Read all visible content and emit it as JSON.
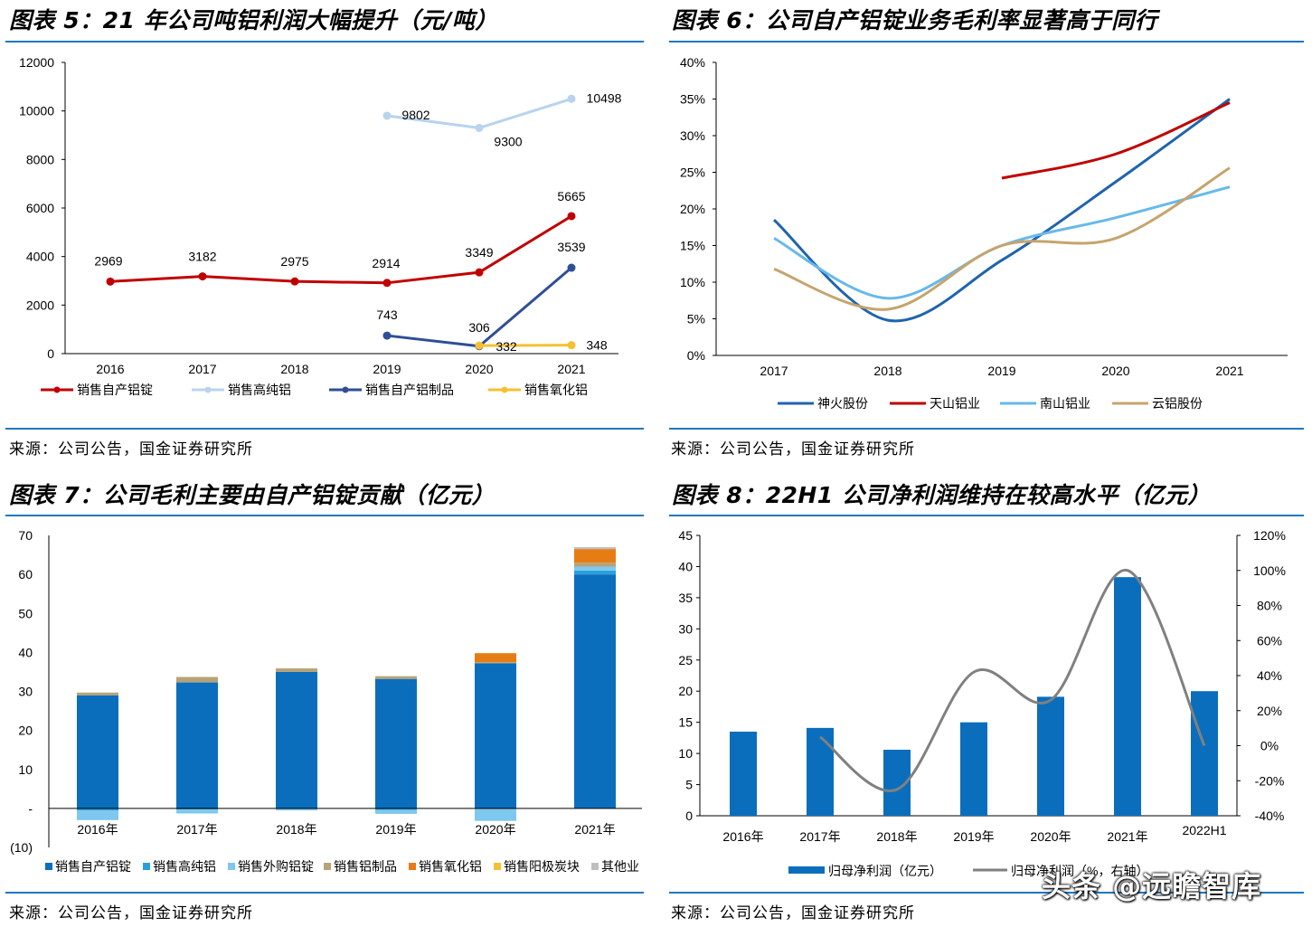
{
  "watermark": "头条 @远瞻智库",
  "panels": [
    {
      "title": "图表 5：21 年公司吨铝利润大幅提升（元/吨）",
      "source": "来源：公司公告，国金证券研究所"
    },
    {
      "title": "图表 6：公司自产铝锭业务毛利率显著高于同行",
      "source": "来源：公司公告，国金证券研究所"
    },
    {
      "title": "图表 7：公司毛利主要由自产铝锭贡献（亿元）",
      "source": "来源：公司公告，国金证券研究所"
    },
    {
      "title": "图表 8：22H1 公司净利润维持在较高水平（亿元）",
      "source": "来源：公司公告，国金证券研究所"
    }
  ],
  "chart_data": [
    {
      "type": "line",
      "title": "21 年公司吨铝利润大幅提升（元/吨）",
      "categories": [
        "2016",
        "2017",
        "2018",
        "2019",
        "2020",
        "2021"
      ],
      "ylim": [
        0,
        12000
      ],
      "yticks": [
        "0",
        "2000",
        "4000",
        "6000",
        "8000",
        "10000",
        "12000"
      ],
      "series": [
        {
          "name": "销售自产铝锭",
          "color": "#c00000",
          "values": [
            2969,
            3182,
            2975,
            2914,
            3349,
            5665
          ],
          "labels": [
            "2969",
            "3182",
            "2975",
            "2914",
            "3349",
            "5665"
          ]
        },
        {
          "name": "销售高纯铝",
          "color": "#b8d3ee",
          "values": [
            null,
            null,
            null,
            9802,
            9300,
            10498
          ],
          "labels": [
            "",
            "",
            "",
            "9802",
            "9300",
            "10498"
          ]
        },
        {
          "name": "销售自产铝制品",
          "color": "#2f4e96",
          "values": [
            null,
            null,
            null,
            743,
            306,
            3539
          ],
          "labels": [
            "",
            "",
            "",
            "743",
            "306",
            "3539"
          ]
        },
        {
          "name": "销售氧化铝",
          "color": "#f5c132",
          "values": [
            null,
            null,
            null,
            null,
            332,
            348
          ],
          "labels": [
            "",
            "",
            "",
            "",
            "332",
            "348"
          ]
        }
      ]
    },
    {
      "type": "line",
      "title": "公司自产铝锭业务毛利率显著高于同行",
      "categories": [
        "2017",
        "2018",
        "2019",
        "2020",
        "2021"
      ],
      "ylim": [
        0,
        40
      ],
      "yticks": [
        "0%",
        "5%",
        "10%",
        "15%",
        "20%",
        "25%",
        "30%",
        "35%",
        "40%"
      ],
      "series": [
        {
          "name": "神火股份",
          "color": "#1f64ad",
          "values": [
            18.5,
            4.8,
            13.0,
            23.7,
            35.0
          ]
        },
        {
          "name": "天山铝业",
          "color": "#c00000",
          "values": [
            null,
            null,
            24.2,
            27.5,
            34.5
          ]
        },
        {
          "name": "南山铝业",
          "color": "#67b9ea",
          "values": [
            16.0,
            7.8,
            15.0,
            18.8,
            23.0
          ]
        },
        {
          "name": "云铝股份",
          "color": "#c6a46d",
          "values": [
            11.8,
            6.3,
            15.0,
            16.0,
            25.6
          ]
        }
      ]
    },
    {
      "type": "bar",
      "stacked": true,
      "title": "公司毛利主要由自产铝锭贡献（亿元）",
      "categories": [
        "2016年",
        "2017年",
        "2018年",
        "2019年",
        "2020年",
        "2021年"
      ],
      "ylim": [
        -10,
        70
      ],
      "yticks": [
        "(10)",
        "-",
        "10",
        "20",
        "30",
        "40",
        "50",
        "60",
        "70"
      ],
      "series": [
        {
          "name": "销售自产铝锭",
          "color": "#0a6ebd",
          "values": [
            29.0,
            32.3,
            35.0,
            33.2,
            37.2,
            60.0
          ]
        },
        {
          "name": "销售高纯铝",
          "color": "#29a0dc",
          "values": [
            -0.5,
            -0.3,
            -0.2,
            -0.4,
            0.0,
            1.0
          ]
        },
        {
          "name": "销售外购铝锭",
          "color": "#7ec8f0",
          "values": [
            -2.5,
            -1.0,
            -0.3,
            -1.0,
            -3.2,
            1.0
          ]
        },
        {
          "name": "销售铝制品",
          "color": "#b6a377",
          "values": [
            0.7,
            1.4,
            0.9,
            0.7,
            0.3,
            1.0
          ]
        },
        {
          "name": "销售氧化铝",
          "color": "#e67d14",
          "values": [
            0.0,
            0.0,
            0.0,
            0.0,
            2.3,
            3.5
          ]
        },
        {
          "name": "销售阳极炭块",
          "color": "#f5c132",
          "values": [
            0.0,
            0.0,
            0.0,
            0.0,
            0.0,
            0.0
          ]
        },
        {
          "name": "其他业",
          "color": "#bfbfbf",
          "values": [
            0.0,
            0.0,
            0.0,
            0.0,
            0.0,
            0.5
          ]
        }
      ]
    },
    {
      "type": "bar",
      "title": "22H1 公司净利润维持在较高水平（亿元）",
      "categories": [
        "2016年",
        "2017年",
        "2018年",
        "2019年",
        "2020年",
        "2021年",
        "2022H1"
      ],
      "ylim": [
        0,
        45
      ],
      "yticks": [
        "0",
        "5",
        "10",
        "15",
        "20",
        "25",
        "30",
        "35",
        "40",
        "45"
      ],
      "y2lim": [
        -40,
        120
      ],
      "y2ticks": [
        "-40%",
        "-20%",
        "0%",
        "20%",
        "40%",
        "60%",
        "80%",
        "100%",
        "120%"
      ],
      "series": [
        {
          "name": "归母净利润（亿元）",
          "color": "#0a6ebd",
          "type": "bar",
          "values": [
            13.5,
            14.1,
            10.6,
            15.0,
            19.1,
            38.3,
            20.0
          ]
        },
        {
          "name": "归母净利润（%，右轴）",
          "color": "#808080",
          "type": "line",
          "axis": "right",
          "values": [
            null,
            5,
            -25,
            42,
            26,
            100,
            0
          ]
        }
      ]
    }
  ]
}
